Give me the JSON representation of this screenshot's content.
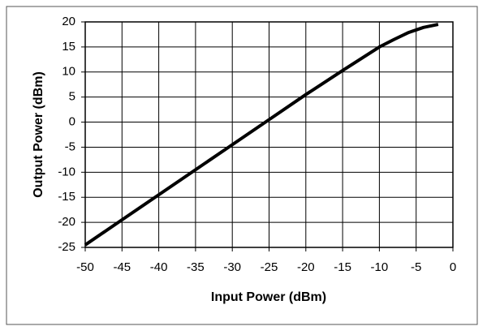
{
  "chart_data": {
    "type": "line",
    "x_label": "Input Power (dBm)",
    "y_label": "Output Power (dBm)",
    "x": [
      -50,
      -45,
      -40,
      -35,
      -30,
      -25,
      -20,
      -15,
      -10,
      -8,
      -6,
      -4,
      -2
    ],
    "series": [
      {
        "color": "#000000",
        "values": [
          -24.5,
          -19.5,
          -14.5,
          -9.5,
          -4.5,
          0.5,
          5.5,
          10.3,
          15,
          16.5,
          17.9,
          18.9,
          19.5
        ]
      }
    ],
    "xlim": [
      -50,
      0
    ],
    "xticks": [
      -50,
      -45,
      -40,
      -35,
      -30,
      -25,
      -20,
      -15,
      -10,
      -5,
      0
    ],
    "ylim": [
      -25,
      20
    ],
    "yticks": [
      -25,
      -20,
      -15,
      -10,
      -5,
      0,
      5,
      10,
      15,
      20
    ],
    "grid": true
  }
}
